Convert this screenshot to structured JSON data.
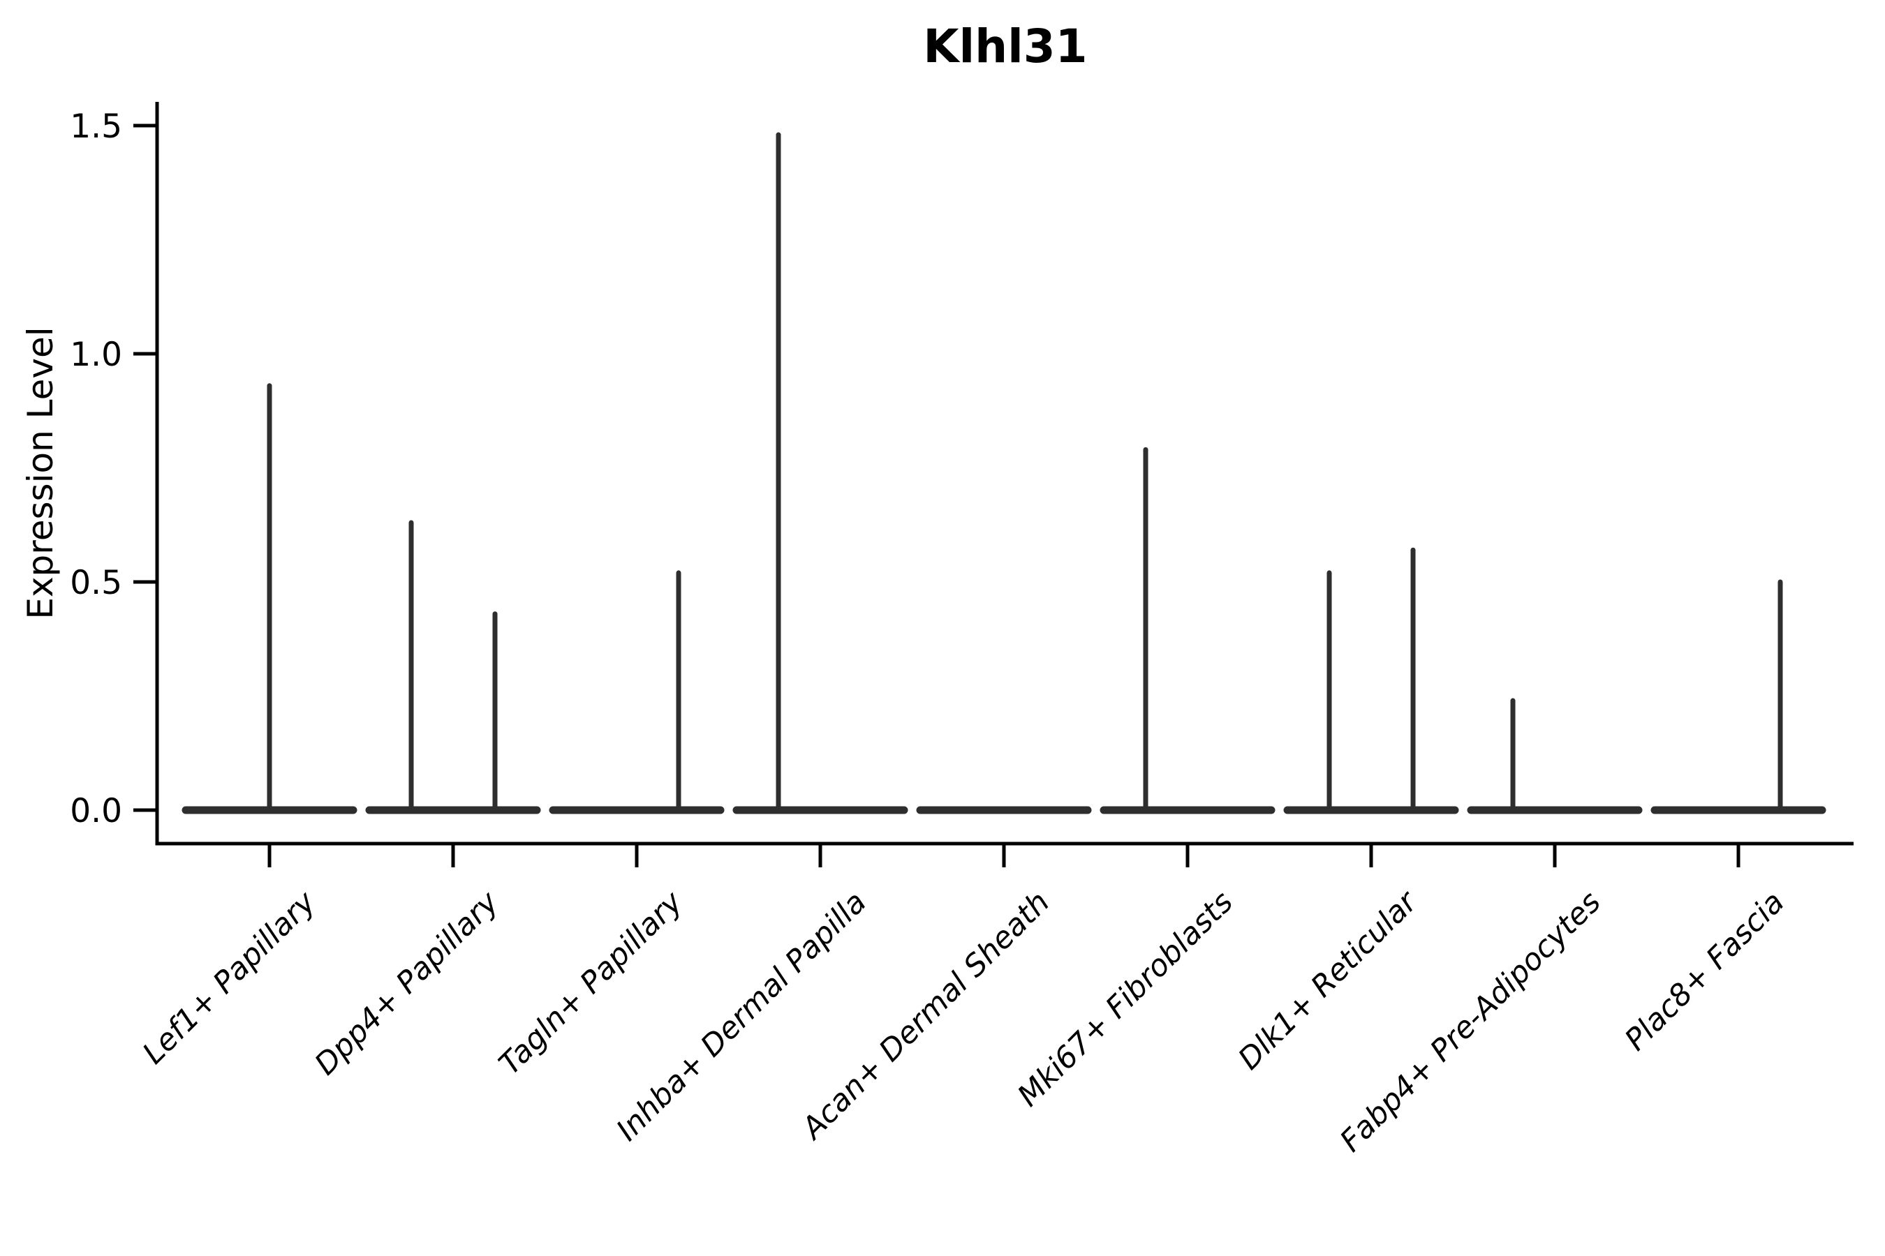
{
  "title": "Klhl31",
  "ylabel": "Expression Level",
  "chart_data": {
    "type": "violin",
    "title": "Klhl31",
    "xlabel": "",
    "ylabel": "Expression Level",
    "grid": false,
    "legend_position": "none",
    "ylim": [
      -0.07,
      1.55
    ],
    "yticks": [
      0.0,
      0.5,
      1.0,
      1.5
    ],
    "ytick_labels": [
      "0.0",
      "0.5",
      "1.0",
      "1.5"
    ],
    "categories": [
      "Lef1+ Papillary",
      "Dpp4+ Papillary",
      "Tagln+ Papillary",
      "Inhba+ Dermal Papilla",
      "Acan+ Dermal Sheath",
      "Mki67+ Fibroblasts",
      "Dlk1+ Reticular",
      "Fabp4+ Pre-Adipocytes",
      "Plac8+ Fascia"
    ],
    "baseline_value": 0.0,
    "violins": [
      {
        "category": "Lef1+ Papillary",
        "spikes": [
          {
            "offset": 0,
            "max": 0.93
          }
        ]
      },
      {
        "category": "Dpp4+ Papillary",
        "spikes": [
          {
            "offset": -1,
            "max": 0.63
          },
          {
            "offset": 1,
            "max": 0.43
          }
        ]
      },
      {
        "category": "Tagln+ Papillary",
        "spikes": [
          {
            "offset": 1,
            "max": 0.52
          }
        ]
      },
      {
        "category": "Inhba+ Dermal Papilla",
        "spikes": [
          {
            "offset": -1,
            "max": 1.48
          }
        ]
      },
      {
        "category": "Acan+ Dermal Sheath",
        "spikes": []
      },
      {
        "category": "Mki67+ Fibroblasts",
        "spikes": [
          {
            "offset": -1,
            "max": 0.79
          }
        ]
      },
      {
        "category": "Dlk1+ Reticular",
        "spikes": [
          {
            "offset": -1,
            "max": 0.52
          },
          {
            "offset": 1,
            "max": 0.57
          }
        ]
      },
      {
        "category": "Fabp4+ Pre-Adipocytes",
        "spikes": [
          {
            "offset": -1,
            "max": 0.24
          }
        ]
      },
      {
        "category": "Plac8+ Fascia",
        "spikes": [
          {
            "offset": 1,
            "max": 0.5
          }
        ]
      }
    ],
    "colors": {
      "violin_stroke": "#2e2e2e",
      "axis": "#000000",
      "background": "#ffffff"
    }
  }
}
